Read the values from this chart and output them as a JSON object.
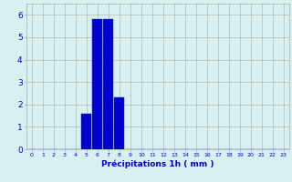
{
  "hours": [
    0,
    1,
    2,
    3,
    4,
    5,
    6,
    7,
    8,
    9,
    10,
    11,
    12,
    13,
    14,
    15,
    16,
    17,
    18,
    19,
    20,
    21,
    22,
    23
  ],
  "values": [
    0,
    0,
    0,
    0,
    0,
    1.6,
    5.8,
    5.8,
    2.3,
    0,
    0,
    0,
    0,
    0,
    0,
    0,
    0,
    0,
    0,
    0,
    0,
    0,
    0,
    0
  ],
  "bar_color": "#0000cc",
  "bar_edge_color": "#1a1aff",
  "background_color": "#d8f0f0",
  "grid_color": "#aaaaaa",
  "xlabel": "Précipitations 1h ( mm )",
  "xlabel_color": "#0000cc",
  "tick_color": "#0000cc",
  "ylim": [
    0,
    6.5
  ],
  "xlim": [
    -0.5,
    23.5
  ],
  "yticks": [
    0,
    1,
    2,
    3,
    4,
    5,
    6
  ],
  "xticks": [
    0,
    1,
    2,
    3,
    4,
    5,
    6,
    7,
    8,
    9,
    10,
    11,
    12,
    13,
    14,
    15,
    16,
    17,
    18,
    19,
    20,
    21,
    22,
    23
  ]
}
